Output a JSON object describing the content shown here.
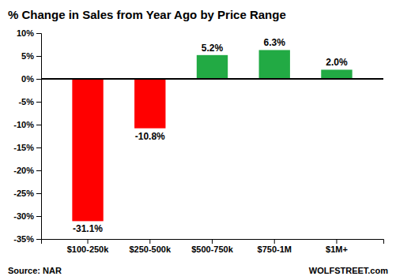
{
  "chart_data": {
    "type": "bar",
    "title": "% Change in Sales from Year Ago by Price Range",
    "categories": [
      "$100-250k",
      "$250-500k",
      "$500-750k",
      "$750-1M",
      "$1M+"
    ],
    "values": [
      -31.1,
      -10.8,
      5.2,
      6.3,
      2.0
    ],
    "colors": [
      "#ff0000",
      "#ff0000",
      "#22aa44",
      "#22aa44",
      "#22aa44"
    ],
    "data_labels": true,
    "value_labels": [
      "-31.1%",
      "-10.8%",
      "5.2%",
      "6.3%",
      "2.0%"
    ],
    "ylim": [
      -35,
      10
    ],
    "yticks": [
      {
        "value": -35,
        "label": "-35%"
      },
      {
        "value": -30,
        "label": "-30%"
      },
      {
        "value": -25,
        "label": "-25%"
      },
      {
        "value": -20,
        "label": "-20%"
      },
      {
        "value": -15,
        "label": "-15%"
      },
      {
        "value": -10,
        "label": "-10%"
      },
      {
        "value": -5,
        "label": "-5%"
      },
      {
        "value": 0,
        "label": "0%"
      },
      {
        "value": 5,
        "label": "5%"
      },
      {
        "value": 10,
        "label": "10%"
      }
    ],
    "grid": false,
    "annotations": [
      "Source: NAR",
      "WOLFSTREET.com"
    ]
  }
}
